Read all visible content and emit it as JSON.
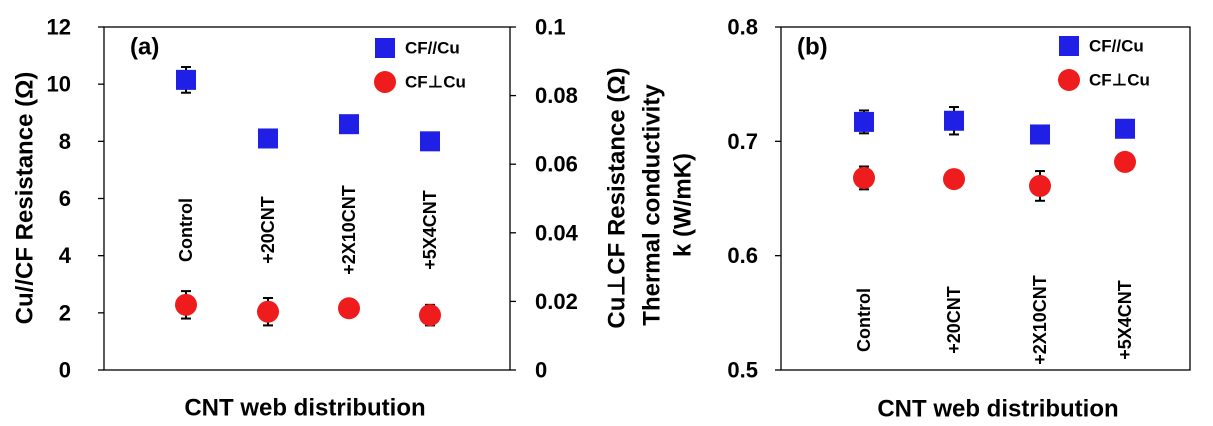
{
  "chart_data": [
    {
      "type": "scatter",
      "panel_label": "(a)",
      "xlabel": "CNT web distribution",
      "ylabel_left": "Cu//CF Resistance (Ω)",
      "ylabel_right": "Cu⊥CF Resistance (Ω)",
      "ylim_left": [
        0,
        12
      ],
      "ylim_right": [
        0,
        0.1
      ],
      "yticks_left": [
        "0",
        "2",
        "4",
        "6",
        "8",
        "10",
        "12"
      ],
      "yticks_right": [
        "0",
        "0.02",
        "0.04",
        "0.06",
        "0.08",
        "0.1"
      ],
      "categories": [
        "Control",
        "+20CNT",
        "+2X10CNT",
        "+5X4CNT"
      ],
      "grid": false,
      "legend_position": "top-right",
      "series": [
        {
          "name": "CF//Cu",
          "marker": "square",
          "color": "#1f1fe6",
          "axis": "left",
          "values": [
            10.15,
            8.1,
            8.6,
            8.0
          ],
          "errors": [
            0.45,
            0.25,
            0.25,
            0.3
          ]
        },
        {
          "name": "CF⊥Cu",
          "marker": "circle",
          "color": "#ee1c1c",
          "axis": "right",
          "values": [
            0.019,
            0.017,
            0.018,
            0.016
          ],
          "errors": [
            0.004,
            0.004,
            0.002,
            0.003
          ]
        }
      ]
    },
    {
      "type": "scatter",
      "panel_label": "(b)",
      "xlabel": "CNT web distribution",
      "ylabel_line1": "Thermal conductivity",
      "ylabel_line2": "k (W/mK)",
      "ylim": [
        0.5,
        0.8
      ],
      "yticks": [
        "0.5",
        "0.6",
        "0.7",
        "0.8"
      ],
      "categories": [
        "Control",
        "+20CNT",
        "+2X10CNT",
        "+5X4CNT"
      ],
      "grid": false,
      "legend_position": "top-right",
      "series": [
        {
          "name": "CF//Cu",
          "marker": "square",
          "color": "#1f1fe6",
          "values": [
            0.717,
            0.718,
            0.706,
            0.711
          ],
          "errors": [
            0.01,
            0.012,
            0.0,
            0.0
          ]
        },
        {
          "name": "CF⊥Cu",
          "marker": "circle",
          "color": "#ee1c1c",
          "values": [
            0.668,
            0.667,
            0.661,
            0.682
          ],
          "errors": [
            0.01,
            0.0,
            0.013,
            0.0
          ]
        }
      ]
    }
  ]
}
